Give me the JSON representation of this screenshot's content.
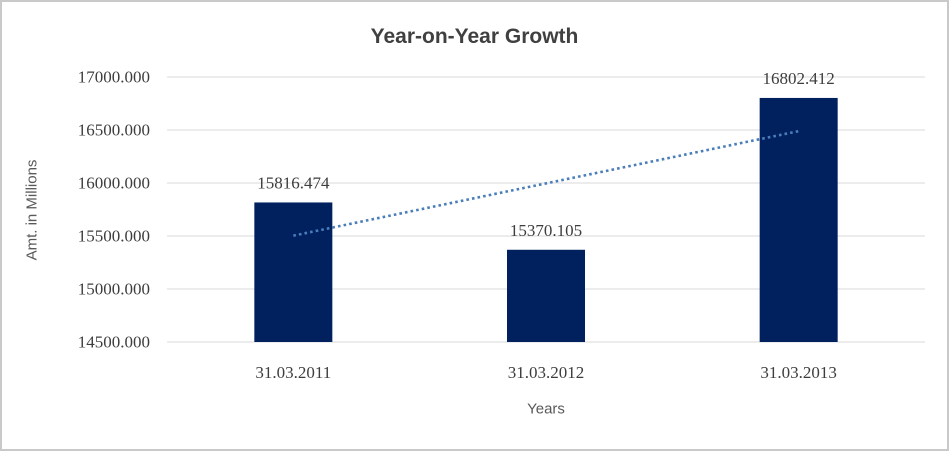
{
  "chart_data": {
    "type": "bar",
    "title": "Year-on-Year Growth",
    "xlabel": "Years",
    "ylabel": "Amt. in Millions",
    "categories": [
      "31.03.2011",
      "31.03.2012",
      "31.03.2013"
    ],
    "values": [
      15816.474,
      15370.105,
      16802.412
    ],
    "data_labels": [
      "15816.474",
      "15370.105",
      "16802.412"
    ],
    "ylim": [
      14500,
      17000
    ],
    "ytick_step": 500,
    "ytick_labels": [
      "14500.000",
      "15000.000",
      "15500.000",
      "16000.000",
      "16500.000",
      "17000.000"
    ],
    "grid": true,
    "legend": false,
    "trendline": {
      "type": "linear",
      "style": "dotted"
    },
    "colors": {
      "bar_fill": "#01215E",
      "trendline": "#4a7ebb",
      "gridline": "#d9d9d9",
      "tick_label_text": "#3d3d3d",
      "data_label_text": "#3d3d3d",
      "category_label_text": "#3d3d3d",
      "axis_title_text": "#595959",
      "title_text": "#404040",
      "frame_border": "#c9c9c9",
      "background": "#ffffff"
    }
  }
}
